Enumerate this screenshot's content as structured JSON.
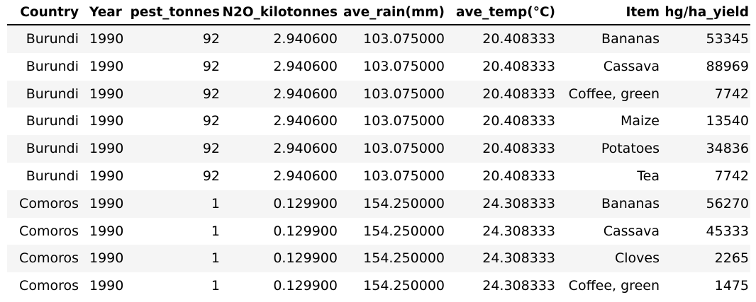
{
  "table": {
    "columns": [
      "Country",
      "Year",
      "pest_tonnes",
      "N2O_kilotonnes",
      "ave_rain($mm$)",
      "ave_temp($^\\circ C$)",
      "Item",
      "hg/ha_yield"
    ],
    "column_display": [
      "Country",
      "Year",
      "pest_tonnes",
      "N2O_kilotonnes",
      "ave_rain(mm)",
      "ave_temp(°C)",
      "Item",
      "hg/ha_yield"
    ],
    "rows": [
      [
        "Burundi",
        "1990",
        "92",
        "2.940600",
        "103.075000",
        "20.408333",
        "Bananas",
        "53345"
      ],
      [
        "Burundi",
        "1990",
        "92",
        "2.940600",
        "103.075000",
        "20.408333",
        "Cassava",
        "88969"
      ],
      [
        "Burundi",
        "1990",
        "92",
        "2.940600",
        "103.075000",
        "20.408333",
        "Coffee, green",
        "7742"
      ],
      [
        "Burundi",
        "1990",
        "92",
        "2.940600",
        "103.075000",
        "20.408333",
        "Maize",
        "13540"
      ],
      [
        "Burundi",
        "1990",
        "92",
        "2.940600",
        "103.075000",
        "20.408333",
        "Potatoes",
        "34836"
      ],
      [
        "Burundi",
        "1990",
        "92",
        "2.940600",
        "103.075000",
        "20.408333",
        "Tea",
        "7742"
      ],
      [
        "Comoros",
        "1990",
        "1",
        "0.129900",
        "154.250000",
        "24.308333",
        "Bananas",
        "56270"
      ],
      [
        "Comoros",
        "1990",
        "1",
        "0.129900",
        "154.250000",
        "24.308333",
        "Cassava",
        "45333"
      ],
      [
        "Comoros",
        "1990",
        "1",
        "0.129900",
        "154.250000",
        "24.308333",
        "Cloves",
        "2265"
      ],
      [
        "Comoros",
        "1990",
        "1",
        "0.129900",
        "154.250000",
        "24.308333",
        "Coffee, green",
        "1475"
      ]
    ]
  },
  "colors": {
    "stripe": "#f5f5f5",
    "rule": "#000000"
  }
}
